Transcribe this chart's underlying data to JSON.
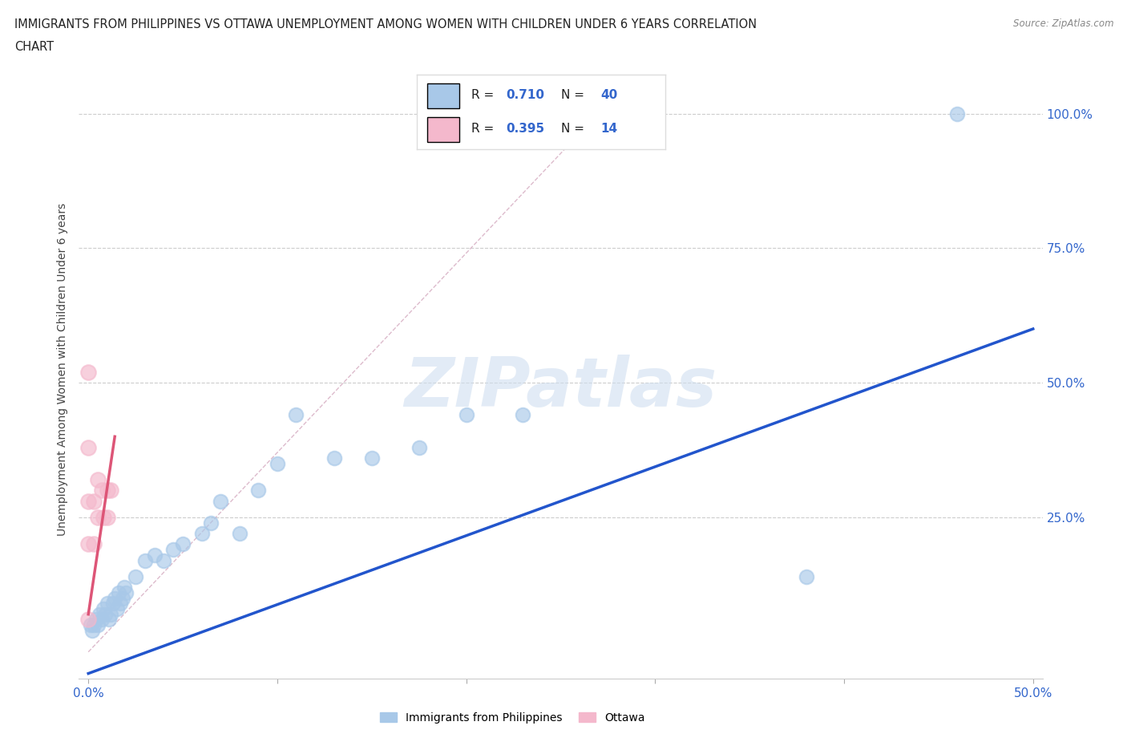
{
  "title_line1": "IMMIGRANTS FROM PHILIPPINES VS OTTAWA UNEMPLOYMENT AMONG WOMEN WITH CHILDREN UNDER 6 YEARS CORRELATION",
  "title_line2": "CHART",
  "source": "Source: ZipAtlas.com",
  "ylabel": "Unemployment Among Women with Children Under 6 years",
  "xlim": [
    -0.005,
    0.505
  ],
  "ylim": [
    -0.05,
    1.1
  ],
  "xticks": [
    0.0,
    0.1,
    0.2,
    0.3,
    0.4,
    0.5
  ],
  "xticklabels": [
    "0.0%",
    "",
    "",
    "",
    "",
    "50.0%"
  ],
  "yticks": [
    0.0,
    0.25,
    0.5,
    0.75,
    1.0
  ],
  "yticklabels_right": [
    "",
    "25.0%",
    "50.0%",
    "75.0%",
    "100.0%"
  ],
  "R_blue": "0.710",
  "N_blue": "40",
  "R_pink": "0.395",
  "N_pink": "14",
  "blue_color": "#a8c8e8",
  "pink_color": "#f4b8cc",
  "trend_blue": "#2255cc",
  "trend_pink": "#dd5577",
  "ref_line_color": "#cccccc",
  "watermark": "ZIPatlas",
  "blue_scatter_x": [
    0.001,
    0.002,
    0.003,
    0.004,
    0.005,
    0.006,
    0.007,
    0.008,
    0.009,
    0.01,
    0.011,
    0.012,
    0.013,
    0.014,
    0.015,
    0.016,
    0.017,
    0.018,
    0.019,
    0.02,
    0.025,
    0.03,
    0.035,
    0.04,
    0.045,
    0.05,
    0.06,
    0.065,
    0.07,
    0.08,
    0.09,
    0.1,
    0.11,
    0.13,
    0.15,
    0.175,
    0.2,
    0.23,
    0.38,
    0.46
  ],
  "blue_scatter_y": [
    0.05,
    0.04,
    0.05,
    0.06,
    0.05,
    0.07,
    0.06,
    0.08,
    0.07,
    0.09,
    0.06,
    0.07,
    0.09,
    0.1,
    0.08,
    0.11,
    0.09,
    0.1,
    0.12,
    0.11,
    0.14,
    0.17,
    0.18,
    0.17,
    0.19,
    0.2,
    0.22,
    0.24,
    0.28,
    0.22,
    0.3,
    0.35,
    0.44,
    0.36,
    0.36,
    0.38,
    0.44,
    0.44,
    0.14,
    1.0
  ],
  "pink_scatter_x": [
    0.0,
    0.0,
    0.0,
    0.0,
    0.0,
    0.003,
    0.003,
    0.005,
    0.005,
    0.007,
    0.008,
    0.01,
    0.01,
    0.012
  ],
  "pink_scatter_y": [
    0.52,
    0.38,
    0.28,
    0.2,
    0.06,
    0.28,
    0.2,
    0.32,
    0.25,
    0.3,
    0.25,
    0.3,
    0.25,
    0.3
  ],
  "blue_trend_x": [
    0.0,
    0.5
  ],
  "blue_trend_y": [
    -0.04,
    0.6
  ],
  "pink_trend_x": [
    0.0,
    0.014
  ],
  "pink_trend_y": [
    0.07,
    0.4
  ],
  "ref_line_x": [
    0.0,
    0.27
  ],
  "ref_line_y": [
    0.0,
    1.0
  ]
}
